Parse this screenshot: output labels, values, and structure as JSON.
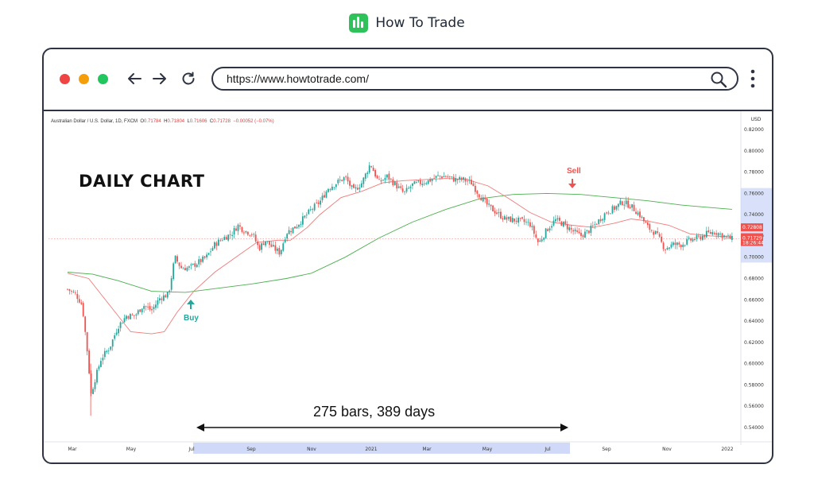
{
  "brand": {
    "name": "How To Trade",
    "logo_icon": "bar-chart-icon",
    "accent": "#2fc25b"
  },
  "browser": {
    "url": "https://www.howtotrade.com/",
    "controls": [
      "back-arrow-icon",
      "forward-arrow-icon",
      "reload-icon",
      "search-icon",
      "more-vert-icon"
    ],
    "window_dots": [
      "#ef4444",
      "#f59e0b",
      "#22c55e"
    ]
  },
  "chart": {
    "symbol_line": "Australian Dollar / U.S. Dollar, 1D, FXCM",
    "ohlc": {
      "o_label": "O",
      "o": "0.71784",
      "h_label": "H",
      "h": "0.71804",
      "l_label": "L",
      "l": "0.71606",
      "c_label": "C",
      "c": "0.71728",
      "change": "−0.00052 (−0.07%)"
    },
    "title": "DAILY CHART",
    "buy_label": "Buy",
    "sell_label": "Sell",
    "span_label": "275 bars, 389 days",
    "currency": "USD",
    "price_tag_1": "0.72808",
    "price_tag_2": "0.71729",
    "price_tag_2_time": "18:26:44",
    "colors": {
      "up": "#26a69a",
      "down": "#ef5350",
      "ma_fast": "#f07a7a",
      "ma_slow": "#4caf50",
      "highlight": "#c8d4f7"
    }
  },
  "chart_data": {
    "type": "candlestick",
    "instrument": "AUD/USD",
    "timeframe": "1D",
    "y_ticks": [
      "0.82000",
      "0.80000",
      "0.78000",
      "0.76000",
      "0.74000",
      "0.72000",
      "0.70000",
      "0.68000",
      "0.66000",
      "0.64000",
      "0.62000",
      "0.60000",
      "0.58000",
      "0.56000",
      "0.54000"
    ],
    "ylim": [
      0.53,
      0.825
    ],
    "x_ticks": [
      "Mar",
      "May",
      "Jul",
      "Sep",
      "Nov",
      "2021",
      "Mar",
      "May",
      "Jul",
      "Sep",
      "Nov",
      "2022"
    ],
    "close_path": [
      {
        "m": 0.0,
        "p": 0.67
      },
      {
        "m": 0.2,
        "p": 0.665
      },
      {
        "m": 0.35,
        "p": 0.655
      },
      {
        "m": 0.5,
        "p": 0.6
      },
      {
        "m": 0.55,
        "p": 0.57
      },
      {
        "m": 0.65,
        "p": 0.585
      },
      {
        "m": 0.8,
        "p": 0.605
      },
      {
        "m": 1.0,
        "p": 0.615
      },
      {
        "m": 1.2,
        "p": 0.635
      },
      {
        "m": 1.4,
        "p": 0.645
      },
      {
        "m": 1.6,
        "p": 0.645
      },
      {
        "m": 1.8,
        "p": 0.655
      },
      {
        "m": 2.0,
        "p": 0.65
      },
      {
        "m": 2.2,
        "p": 0.662
      },
      {
        "m": 2.4,
        "p": 0.665
      },
      {
        "m": 2.55,
        "p": 0.7
      },
      {
        "m": 2.7,
        "p": 0.69
      },
      {
        "m": 2.9,
        "p": 0.69
      },
      {
        "m": 3.1,
        "p": 0.695
      },
      {
        "m": 3.3,
        "p": 0.7
      },
      {
        "m": 3.5,
        "p": 0.712
      },
      {
        "m": 3.7,
        "p": 0.718
      },
      {
        "m": 3.9,
        "p": 0.722
      },
      {
        "m": 4.05,
        "p": 0.73
      },
      {
        "m": 4.2,
        "p": 0.725
      },
      {
        "m": 4.4,
        "p": 0.722
      },
      {
        "m": 4.55,
        "p": 0.708
      },
      {
        "m": 4.7,
        "p": 0.716
      },
      {
        "m": 4.85,
        "p": 0.71
      },
      {
        "m": 5.05,
        "p": 0.704
      },
      {
        "m": 5.2,
        "p": 0.723
      },
      {
        "m": 5.4,
        "p": 0.728
      },
      {
        "m": 5.6,
        "p": 0.736
      },
      {
        "m": 5.8,
        "p": 0.745
      },
      {
        "m": 6.0,
        "p": 0.752
      },
      {
        "m": 6.2,
        "p": 0.765
      },
      {
        "m": 6.4,
        "p": 0.77
      },
      {
        "m": 6.6,
        "p": 0.775
      },
      {
        "m": 6.8,
        "p": 0.762
      },
      {
        "m": 7.0,
        "p": 0.77
      },
      {
        "m": 7.2,
        "p": 0.788
      },
      {
        "m": 7.4,
        "p": 0.77
      },
      {
        "m": 7.6,
        "p": 0.776
      },
      {
        "m": 7.8,
        "p": 0.768
      },
      {
        "m": 8.0,
        "p": 0.76
      },
      {
        "m": 8.2,
        "p": 0.768
      },
      {
        "m": 8.4,
        "p": 0.77
      },
      {
        "m": 8.6,
        "p": 0.772
      },
      {
        "m": 8.8,
        "p": 0.776
      },
      {
        "m": 9.0,
        "p": 0.776
      },
      {
        "m": 9.2,
        "p": 0.773
      },
      {
        "m": 9.4,
        "p": 0.773
      },
      {
        "m": 9.6,
        "p": 0.77
      },
      {
        "m": 9.8,
        "p": 0.758
      },
      {
        "m": 10.0,
        "p": 0.748
      },
      {
        "m": 10.2,
        "p": 0.742
      },
      {
        "m": 10.4,
        "p": 0.736
      },
      {
        "m": 10.6,
        "p": 0.735
      },
      {
        "m": 10.8,
        "p": 0.734
      },
      {
        "m": 11.0,
        "p": 0.731
      },
      {
        "m": 11.2,
        "p": 0.713
      },
      {
        "m": 11.4,
        "p": 0.726
      },
      {
        "m": 11.6,
        "p": 0.735
      },
      {
        "m": 11.8,
        "p": 0.731
      },
      {
        "m": 12.0,
        "p": 0.725
      },
      {
        "m": 12.2,
        "p": 0.72
      },
      {
        "m": 12.4,
        "p": 0.725
      },
      {
        "m": 12.6,
        "p": 0.733
      },
      {
        "m": 12.8,
        "p": 0.742
      },
      {
        "m": 13.0,
        "p": 0.746
      },
      {
        "m": 13.2,
        "p": 0.752
      },
      {
        "m": 13.4,
        "p": 0.748
      },
      {
        "m": 13.6,
        "p": 0.74
      },
      {
        "m": 13.8,
        "p": 0.728
      },
      {
        "m": 14.0,
        "p": 0.722
      },
      {
        "m": 14.2,
        "p": 0.708
      },
      {
        "m": 14.4,
        "p": 0.712
      },
      {
        "m": 14.6,
        "p": 0.712
      },
      {
        "m": 14.8,
        "p": 0.716
      },
      {
        "m": 15.0,
        "p": 0.718
      },
      {
        "m": 15.2,
        "p": 0.722
      },
      {
        "m": 15.4,
        "p": 0.724
      },
      {
        "m": 15.6,
        "p": 0.72
      },
      {
        "m": 15.8,
        "p": 0.717
      }
    ],
    "ma_fast": [
      {
        "m": 0.0,
        "p": 0.685
      },
      {
        "m": 0.5,
        "p": 0.68
      },
      {
        "m": 1.0,
        "p": 0.655
      },
      {
        "m": 1.5,
        "p": 0.63
      },
      {
        "m": 2.0,
        "p": 0.628
      },
      {
        "m": 2.3,
        "p": 0.63
      },
      {
        "m": 2.6,
        "p": 0.648
      },
      {
        "m": 3.0,
        "p": 0.668
      },
      {
        "m": 3.5,
        "p": 0.686
      },
      {
        "m": 4.0,
        "p": 0.7
      },
      {
        "m": 4.5,
        "p": 0.714
      },
      {
        "m": 5.0,
        "p": 0.716
      },
      {
        "m": 5.3,
        "p": 0.716
      },
      {
        "m": 5.7,
        "p": 0.728
      },
      {
        "m": 6.0,
        "p": 0.74
      },
      {
        "m": 6.5,
        "p": 0.756
      },
      {
        "m": 7.0,
        "p": 0.762
      },
      {
        "m": 7.5,
        "p": 0.77
      },
      {
        "m": 8.0,
        "p": 0.772
      },
      {
        "m": 8.5,
        "p": 0.773
      },
      {
        "m": 9.0,
        "p": 0.774
      },
      {
        "m": 9.5,
        "p": 0.773
      },
      {
        "m": 10.0,
        "p": 0.767
      },
      {
        "m": 10.5,
        "p": 0.755
      },
      {
        "m": 11.0,
        "p": 0.742
      },
      {
        "m": 11.5,
        "p": 0.733
      },
      {
        "m": 12.0,
        "p": 0.73
      },
      {
        "m": 12.5,
        "p": 0.728
      },
      {
        "m": 13.0,
        "p": 0.732
      },
      {
        "m": 13.4,
        "p": 0.736
      },
      {
        "m": 13.8,
        "p": 0.734
      },
      {
        "m": 14.3,
        "p": 0.73
      },
      {
        "m": 14.8,
        "p": 0.722
      },
      {
        "m": 15.3,
        "p": 0.72
      },
      {
        "m": 15.8,
        "p": 0.719
      }
    ],
    "ma_slow": [
      {
        "m": 0.0,
        "p": 0.686
      },
      {
        "m": 0.6,
        "p": 0.684
      },
      {
        "m": 1.2,
        "p": 0.678
      },
      {
        "m": 2.0,
        "p": 0.668
      },
      {
        "m": 2.8,
        "p": 0.667
      },
      {
        "m": 3.6,
        "p": 0.671
      },
      {
        "m": 4.4,
        "p": 0.675
      },
      {
        "m": 5.2,
        "p": 0.68
      },
      {
        "m": 5.8,
        "p": 0.685
      },
      {
        "m": 6.6,
        "p": 0.7
      },
      {
        "m": 7.4,
        "p": 0.718
      },
      {
        "m": 8.2,
        "p": 0.733
      },
      {
        "m": 9.0,
        "p": 0.745
      },
      {
        "m": 9.8,
        "p": 0.755
      },
      {
        "m": 10.6,
        "p": 0.759
      },
      {
        "m": 11.4,
        "p": 0.76
      },
      {
        "m": 12.2,
        "p": 0.759
      },
      {
        "m": 13.0,
        "p": 0.756
      },
      {
        "m": 13.8,
        "p": 0.753
      },
      {
        "m": 14.6,
        "p": 0.749
      },
      {
        "m": 15.2,
        "p": 0.747
      },
      {
        "m": 15.8,
        "p": 0.745
      }
    ],
    "last_price": 0.71728,
    "low_point": 0.551,
    "high_point": 0.8
  }
}
